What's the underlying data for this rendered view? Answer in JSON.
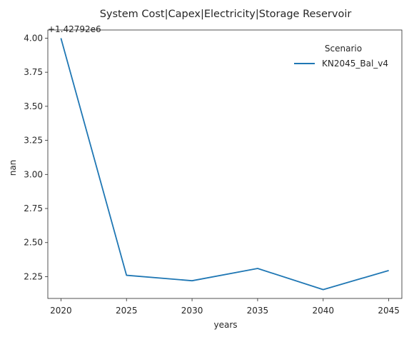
{
  "chart_data": {
    "type": "line",
    "title": "System Cost|Capex|Electricity|Storage Reservoir",
    "xlabel": "years",
    "ylabel": "nan",
    "y_offset_label": "+1.42792e6",
    "x_ticks": [
      "2020",
      "2025",
      "2030",
      "2035",
      "2040",
      "2045"
    ],
    "y_ticks": [
      "2.25",
      "2.50",
      "2.75",
      "3.00",
      "3.25",
      "3.50",
      "3.75",
      "4.00"
    ],
    "xlim": [
      2019,
      2046
    ],
    "ylim": [
      2.09,
      4.06
    ],
    "grid": false,
    "legend": {
      "title": "Scenario",
      "position": "top-right"
    },
    "series": [
      {
        "name": "KN2045_Bal_v4",
        "color": "#1f77b4",
        "x": [
          2020,
          2025,
          2030,
          2035,
          2040,
          2045
        ],
        "y": [
          4.0,
          2.26,
          2.22,
          2.31,
          2.155,
          2.295
        ]
      }
    ]
  }
}
